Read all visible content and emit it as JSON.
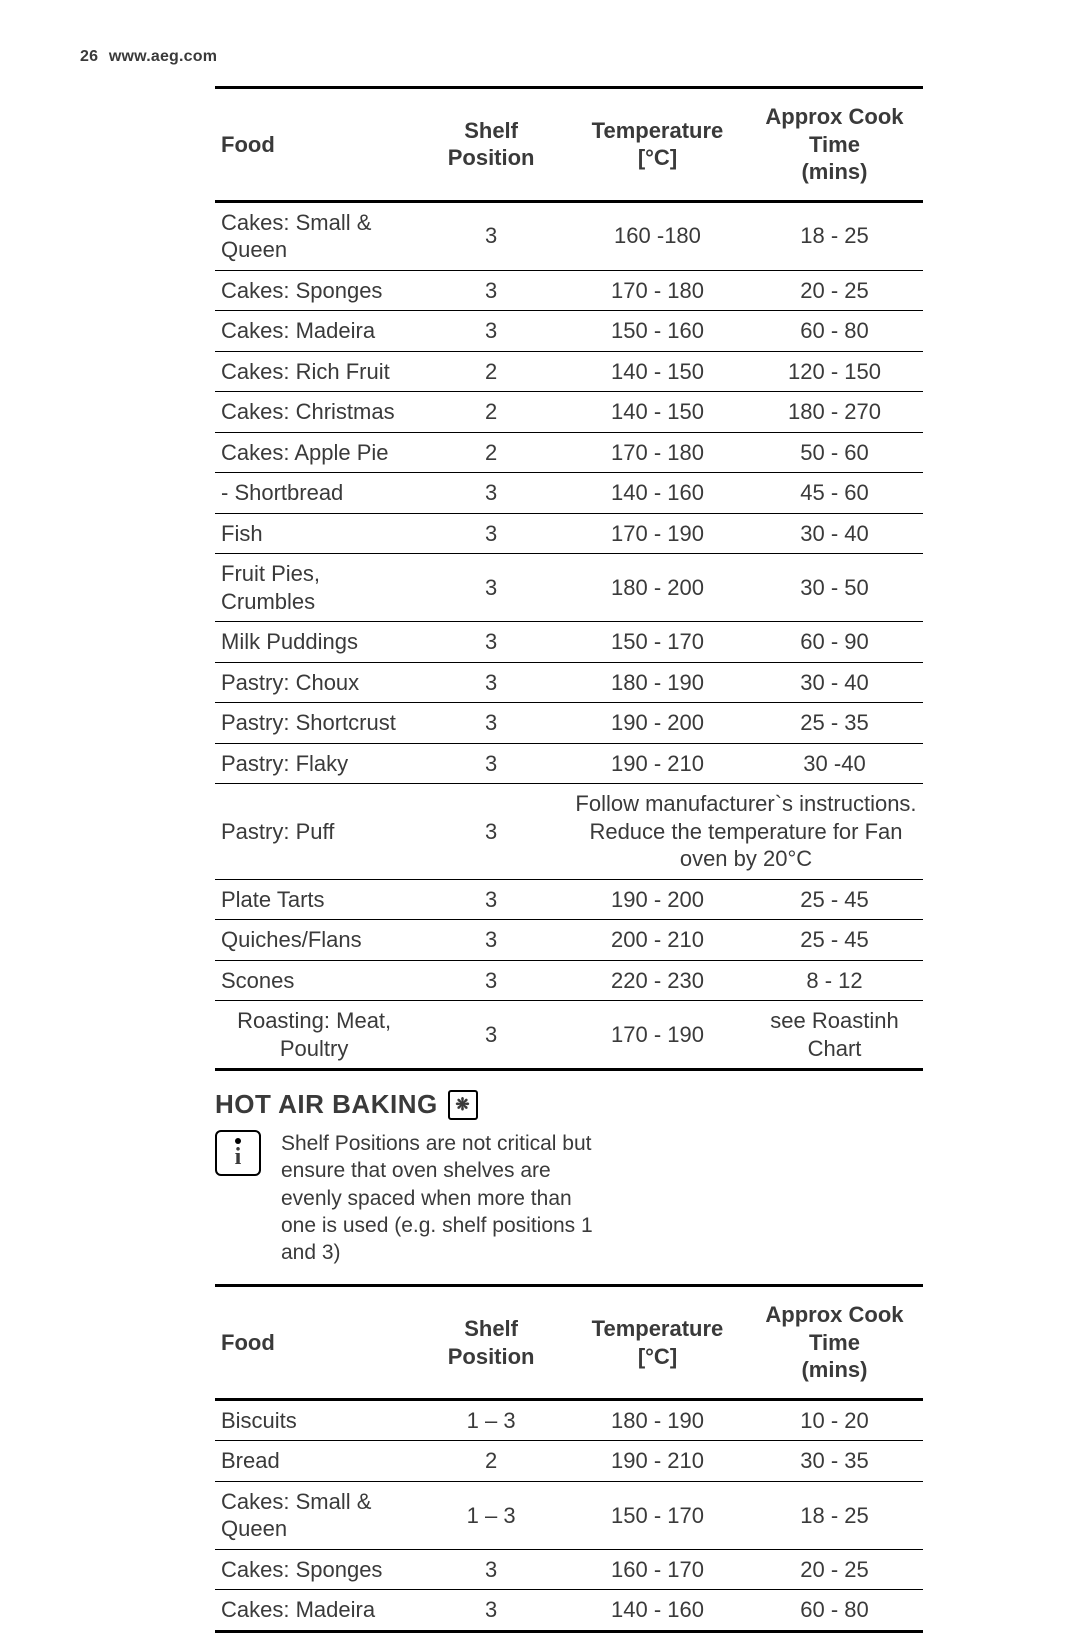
{
  "header": {
    "page": "26",
    "url": "www.aeg.com"
  },
  "table1": {
    "columns": [
      "Food",
      "Shelf Position",
      "Temperature [°C]",
      "Approx Cook Time (mins)"
    ],
    "rows": [
      {
        "food": "Cakes: Small & Queen",
        "shelf": "3",
        "temp": "160 -180",
        "time": "18 - 25"
      },
      {
        "food": "Cakes: Sponges",
        "shelf": "3",
        "temp": "170 - 180",
        "time": "20 - 25"
      },
      {
        "food": "Cakes: Madeira",
        "shelf": "3",
        "temp": "150 - 160",
        "time": "60 - 80"
      },
      {
        "food": "Cakes: Rich Fruit",
        "shelf": "2",
        "temp": "140 - 150",
        "time": "120 - 150"
      },
      {
        "food": "Cakes: Christmas",
        "shelf": "2",
        "temp": "140 - 150",
        "time": "180 - 270"
      },
      {
        "food": "Cakes: Apple Pie",
        "shelf": "2",
        "temp": "170 - 180",
        "time": "50 - 60"
      },
      {
        "food": "- Shortbread",
        "shelf": "3",
        "temp": "140 - 160",
        "time": "45 - 60"
      },
      {
        "food": "Fish",
        "shelf": "3",
        "temp": "170 - 190",
        "time": "30 - 40"
      },
      {
        "food": "Fruit Pies, Crumbles",
        "shelf": "3",
        "temp": "180 - 200",
        "time": "30 - 50"
      },
      {
        "food": "Milk Puddings",
        "shelf": "3",
        "temp": "150 - 170",
        "time": "60 - 90"
      },
      {
        "food": "Pastry: Choux",
        "shelf": "3",
        "temp": "180 - 190",
        "time": "30 - 40"
      },
      {
        "food": "Pastry: Shortcrust",
        "shelf": "3",
        "temp": "190 - 200",
        "time": "25 - 35"
      },
      {
        "food": "Pastry: Flaky",
        "shelf": "3",
        "temp": "190 - 210",
        "time": "30 -40"
      },
      {
        "food": "Pastry: Puff",
        "shelf": "3",
        "merged": "Follow manufacturer`s instructions. Reduce the temperature for Fan oven by 20°C"
      },
      {
        "food": "Plate Tarts",
        "shelf": "3",
        "temp": "190 - 200",
        "time": "25 - 45"
      },
      {
        "food": "Quiches/Flans",
        "shelf": "3",
        "temp": "200 - 210",
        "time": "25 - 45"
      },
      {
        "food": "Scones",
        "shelf": "3",
        "temp": "220 - 230",
        "time": "8 - 12"
      },
      {
        "food": "Roasting: Meat, Poultry",
        "shelf": "3",
        "temp": "170 - 190",
        "time": "see Roastinh Chart",
        "roast": true
      }
    ]
  },
  "section": {
    "title": "HOT AIR BAKING"
  },
  "note": "Shelf Positions are not critical but ensure that oven shelves are evenly spaced when more than one is used (e.g. shelf positions 1 and 3)",
  "table2": {
    "columns": [
      "Food",
      "Shelf Position",
      "Temperature [°C]",
      "Approx Cook Time (mins)"
    ],
    "rows": [
      {
        "food": "Biscuits",
        "shelf": "1 – 3",
        "temp": "180 - 190",
        "time": "10 - 20"
      },
      {
        "food": "Bread",
        "shelf": "2",
        "temp": "190 - 210",
        "time": "30 - 35"
      },
      {
        "food": "Cakes: Small & Queen",
        "shelf": "1 – 3",
        "temp": "150 - 170",
        "time": "18 - 25"
      },
      {
        "food": "Cakes: Sponges",
        "shelf": "3",
        "temp": "160 - 170",
        "time": "20 - 25"
      },
      {
        "food": "Cakes: Madeira",
        "shelf": "3",
        "temp": "140 - 160",
        "time": "60 - 80"
      }
    ]
  }
}
